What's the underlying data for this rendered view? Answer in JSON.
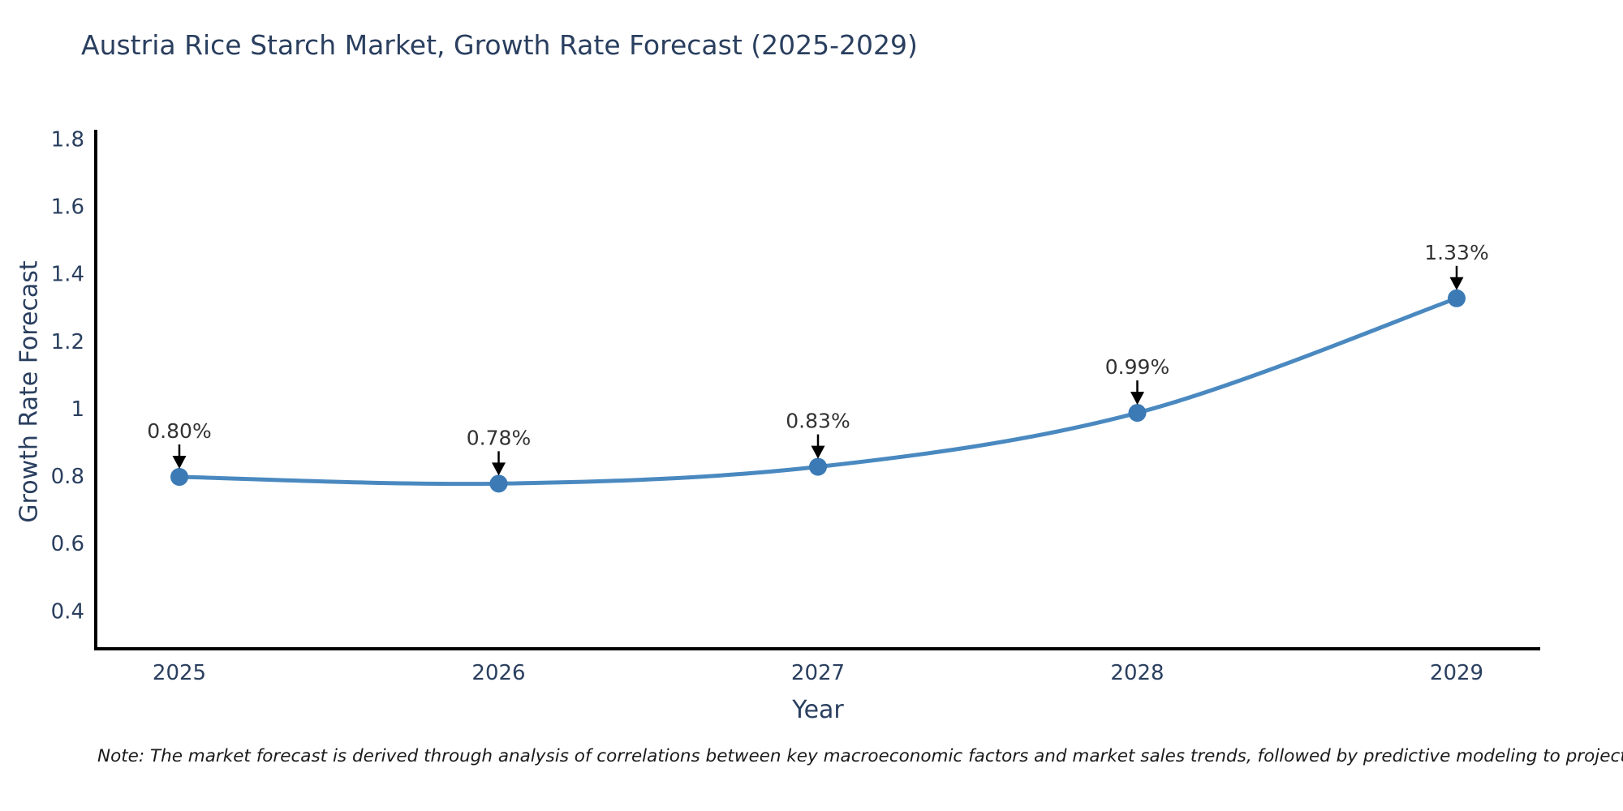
{
  "note": "Note: The market forecast is derived through analysis of correlations between key macroeconomic factors and market sales trends, followed by predictive modeling to project future sales",
  "chart_data": {
    "type": "line",
    "title": "Austria Rice Starch Market, Growth Rate Forecast (2025-2029)",
    "xlabel": "Year",
    "ylabel": "Growth Rate Forecast",
    "x": [
      "2025",
      "2026",
      "2027",
      "2028",
      "2029"
    ],
    "series": [
      {
        "name": "Growth Rate Forecast",
        "values": [
          0.8,
          0.78,
          0.83,
          0.99,
          1.33
        ]
      }
    ],
    "point_labels": [
      "0.80%",
      "0.78%",
      "0.83%",
      "0.99%",
      "1.33%"
    ],
    "yticks": [
      0.4,
      0.6,
      0.8,
      1,
      1.2,
      1.4,
      1.6,
      1.8
    ],
    "ytick_labels": [
      "0.4",
      "0.6",
      "0.8",
      "1",
      "1.2",
      "1.4",
      "1.6",
      "1.8"
    ],
    "ylim": [
      0.29,
      1.83
    ],
    "grid": false,
    "legend": "none",
    "line_shape": "spline",
    "marker_size": 11,
    "colors": {
      "line": "#4a89c0",
      "marker": "#3b7ab5",
      "axis": "#000000",
      "tick_text": "#2a3f5f",
      "title_text": "#2a3f5f",
      "annotation_text": "#333333",
      "annotation_arrow": "#000000",
      "note_text": "#1a1a1a",
      "background": "#ffffff"
    }
  }
}
